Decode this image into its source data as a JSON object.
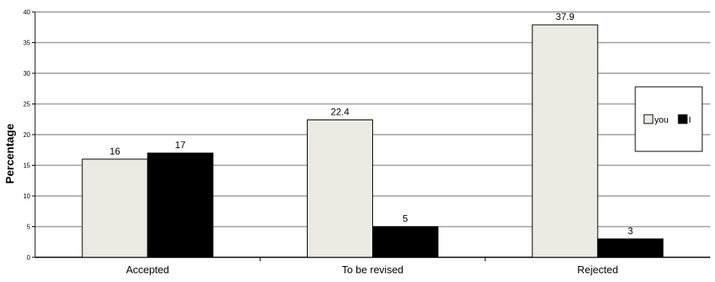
{
  "chart_data": {
    "type": "bar",
    "title": "",
    "xlabel": "",
    "ylabel": "Percentage",
    "categories": [
      "Accepted",
      "To be revised",
      "Rejected"
    ],
    "series": [
      {
        "name": "you",
        "values": [
          16,
          22.4,
          37.9
        ],
        "color": "#ecebe3"
      },
      {
        "name": "I",
        "values": [
          17,
          5,
          3
        ],
        "color": "#000000"
      }
    ],
    "data_labels": [
      [
        "16",
        "22.4",
        "37.9"
      ],
      [
        "17",
        "5",
        "3"
      ]
    ],
    "ylim": [
      0,
      40
    ],
    "yticks": [
      0,
      5,
      10,
      15,
      20,
      25,
      30,
      35,
      40
    ],
    "ytick_labels": [
      "0",
      "5",
      "10",
      "15",
      "20",
      "25",
      "30",
      "35",
      "40"
    ],
    "grid": true,
    "legend_position": "right"
  }
}
